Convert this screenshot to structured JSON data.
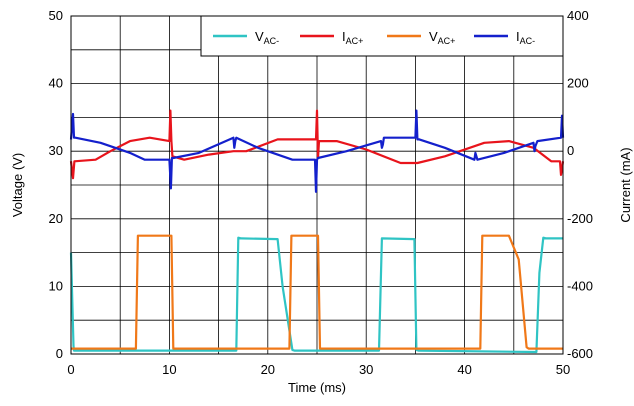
{
  "chart_data": {
    "type": "line",
    "xlabel": "Time (ms)",
    "ylabel_left": "Voltage (V)",
    "ylabel_right": "Current (mA)",
    "xlim": [
      0,
      50
    ],
    "ylim_left": [
      0,
      50
    ],
    "ylim_right": [
      -600,
      400
    ],
    "x_ticks": [
      "0",
      "10",
      "20",
      "30",
      "40",
      "50"
    ],
    "y_left_ticks": [
      "0",
      "10",
      "20",
      "30",
      "40",
      "50"
    ],
    "y_right_ticks": [
      "-600",
      "-400",
      "-200",
      "0",
      "200",
      "400"
    ],
    "grid": true,
    "legend_position": "top-right",
    "series": [
      {
        "name": "V_AC-",
        "label_main": "V",
        "label_sub": "AC-",
        "axis": "left",
        "color": "#2fc4c4",
        "x": [
          0,
          0.25,
          0.3,
          16.8,
          17.0,
          17.3,
          21.0,
          21.5,
          22.5,
          22.7,
          31.3,
          31.6,
          34.9,
          35.1,
          35.3,
          47.3,
          47.6,
          48.0,
          48.3,
          50
        ],
        "y": [
          15,
          1.2,
          0.5,
          0.5,
          17.2,
          17.1,
          17.0,
          10,
          0.6,
          0.5,
          0.5,
          17.1,
          17.0,
          0.6,
          0.5,
          0.3,
          12,
          17.2,
          17.1,
          17.1
        ]
      },
      {
        "name": "V_AC+",
        "label_main": "V",
        "label_sub": "AC+",
        "axis": "left",
        "color": "#f07818",
        "x": [
          0,
          6.6,
          6.8,
          10.2,
          10.4,
          22.2,
          22.4,
          25.1,
          25.3,
          41.6,
          41.8,
          44.5,
          45.5,
          46.3,
          46.5,
          50
        ],
        "y": [
          0.8,
          0.8,
          17.5,
          17.5,
          0.8,
          0.8,
          17.5,
          17.5,
          0.8,
          0.8,
          17.5,
          17.5,
          14,
          1.0,
          0.8,
          0.8
        ]
      },
      {
        "name": "I_AC+",
        "label_main": "I",
        "label_sub": "AC+",
        "axis": "right",
        "color": "#e8141c",
        "x": [
          0,
          0.2,
          0.35,
          2.5,
          4.0,
          6.0,
          8.0,
          10.0,
          10.1,
          10.2,
          10.3,
          11.5,
          14.0,
          16.5,
          17.8,
          21.0,
          24.9,
          25.0,
          25.1,
          25.2,
          27.0,
          30.0,
          33.5,
          35.0,
          35.2,
          38.0,
          42.0,
          44.5,
          47.0,
          48.8,
          49.2,
          49.7,
          49.8,
          50
        ],
        "y": [
          -30,
          -80,
          -30,
          -25,
          0,
          30,
          40,
          30,
          120,
          30,
          -15,
          -25,
          -10,
          0,
          0,
          35,
          35,
          120,
          -20,
          30,
          30,
          5,
          -35,
          -35,
          -35,
          -15,
          25,
          30,
          10,
          -30,
          -30,
          -30,
          -70,
          -30
        ]
      },
      {
        "name": "I_AC-",
        "label_main": "I",
        "label_sub": "AC-",
        "axis": "right",
        "color": "#1420cc",
        "x": [
          0,
          0.2,
          0.3,
          0.45,
          3.0,
          6.0,
          7.5,
          10.0,
          10.15,
          10.25,
          10.4,
          13.0,
          16.5,
          16.6,
          16.7,
          16.8,
          19.0,
          22.5,
          24.8,
          24.9,
          25.0,
          25.1,
          28.0,
          31.5,
          31.6,
          31.7,
          31.8,
          35.0,
          35.1,
          35.2,
          35.4,
          38.0,
          41.0,
          41.1,
          41.2,
          41.3,
          44.0,
          47.0,
          47.1,
          47.2,
          47.4,
          49.8,
          49.9,
          50
        ],
        "y": [
          35,
          110,
          40,
          40,
          25,
          -5,
          -25,
          -25,
          -110,
          -20,
          -20,
          -5,
          40,
          10,
          30,
          40,
          10,
          -25,
          -25,
          -120,
          -25,
          -20,
          0,
          30,
          10,
          20,
          40,
          40,
          120,
          35,
          35,
          10,
          -25,
          -5,
          -15,
          -25,
          -5,
          25,
          0,
          15,
          30,
          40,
          105,
          40
        ]
      }
    ]
  }
}
